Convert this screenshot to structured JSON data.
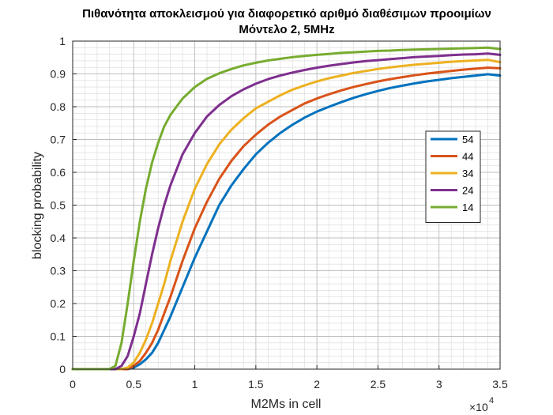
{
  "chart_data": {
    "type": "line",
    "title": "Πιθανότητα αποκλεισμού για διαφορετικό αριθμό διαθέσιμων προοιμίων",
    "subtitle": "Μόντελο 2, 5MHz",
    "xlabel": "M2Ms in cell",
    "ylabel": "blocking probability",
    "x_multiplier_base": "×10",
    "x_multiplier_exp": "4",
    "xlim": [
      0,
      35000
    ],
    "ylim": [
      0,
      1
    ],
    "x_ticks": [
      0,
      5000,
      10000,
      15000,
      20000,
      25000,
      30000,
      35000
    ],
    "x_tick_labels": [
      "0",
      "0.5",
      "1",
      "1.5",
      "2",
      "2.5",
      "3",
      "3.5"
    ],
    "y_ticks": [
      0,
      0.1,
      0.2,
      0.3,
      0.4,
      0.5,
      0.6,
      0.7,
      0.8,
      0.9,
      1
    ],
    "y_tick_labels": [
      "0",
      "0.1",
      "0.2",
      "0.3",
      "0.4",
      "0.5",
      "0.6",
      "0.7",
      "0.8",
      "0.9",
      "1"
    ],
    "grid": "major and minor",
    "legend_position": "right",
    "x": [
      0,
      2500,
      3000,
      3500,
      4000,
      4500,
      5000,
      5500,
      6000,
      6500,
      7000,
      7500,
      8000,
      9000,
      10000,
      11000,
      12000,
      13000,
      14000,
      15000,
      16000,
      17000,
      18000,
      19000,
      20000,
      21000,
      22000,
      23000,
      24000,
      25000,
      26000,
      27000,
      28000,
      29000,
      30000,
      31000,
      32000,
      33000,
      34000,
      35000
    ],
    "series": [
      {
        "name": "54",
        "color": "#0072BD",
        "values": [
          0,
          0,
          0,
          0,
          0,
          0,
          0.005,
          0.015,
          0.03,
          0.05,
          0.08,
          0.12,
          0.16,
          0.25,
          0.34,
          0.42,
          0.5,
          0.56,
          0.61,
          0.655,
          0.69,
          0.72,
          0.745,
          0.767,
          0.785,
          0.8,
          0.814,
          0.827,
          0.838,
          0.848,
          0.857,
          0.864,
          0.871,
          0.877,
          0.882,
          0.887,
          0.891,
          0.895,
          0.899,
          0.895
        ]
      },
      {
        "name": "44",
        "color": "#D95319",
        "values": [
          0,
          0,
          0,
          0,
          0,
          0,
          0.01,
          0.025,
          0.05,
          0.08,
          0.12,
          0.17,
          0.22,
          0.33,
          0.43,
          0.51,
          0.58,
          0.635,
          0.68,
          0.715,
          0.745,
          0.77,
          0.79,
          0.81,
          0.825,
          0.838,
          0.85,
          0.86,
          0.869,
          0.877,
          0.884,
          0.89,
          0.896,
          0.901,
          0.905,
          0.909,
          0.913,
          0.916,
          0.919,
          0.917
        ]
      },
      {
        "name": "34",
        "color": "#EDB120",
        "values": [
          0,
          0,
          0,
          0,
          0,
          0.005,
          0.02,
          0.05,
          0.09,
          0.14,
          0.2,
          0.26,
          0.33,
          0.45,
          0.55,
          0.625,
          0.685,
          0.73,
          0.765,
          0.795,
          0.815,
          0.835,
          0.852,
          0.865,
          0.877,
          0.887,
          0.895,
          0.903,
          0.909,
          0.915,
          0.92,
          0.924,
          0.928,
          0.931,
          0.934,
          0.937,
          0.939,
          0.941,
          0.943,
          0.936
        ]
      },
      {
        "name": "24",
        "color": "#7E2F8E",
        "values": [
          0,
          0,
          0,
          0,
          0.01,
          0.04,
          0.1,
          0.17,
          0.26,
          0.35,
          0.43,
          0.5,
          0.56,
          0.655,
          0.72,
          0.77,
          0.805,
          0.832,
          0.853,
          0.87,
          0.884,
          0.895,
          0.904,
          0.912,
          0.919,
          0.925,
          0.93,
          0.935,
          0.939,
          0.942,
          0.945,
          0.948,
          0.951,
          0.953,
          0.955,
          0.957,
          0.959,
          0.96,
          0.962,
          0.958
        ]
      },
      {
        "name": "14",
        "color": "#77AC30",
        "values": [
          0,
          0,
          0,
          0.01,
          0.08,
          0.2,
          0.33,
          0.45,
          0.55,
          0.63,
          0.69,
          0.74,
          0.775,
          0.825,
          0.86,
          0.885,
          0.902,
          0.915,
          0.926,
          0.934,
          0.941,
          0.946,
          0.951,
          0.955,
          0.958,
          0.961,
          0.964,
          0.966,
          0.968,
          0.97,
          0.971,
          0.973,
          0.974,
          0.975,
          0.976,
          0.977,
          0.978,
          0.979,
          0.98,
          0.976
        ]
      }
    ]
  }
}
